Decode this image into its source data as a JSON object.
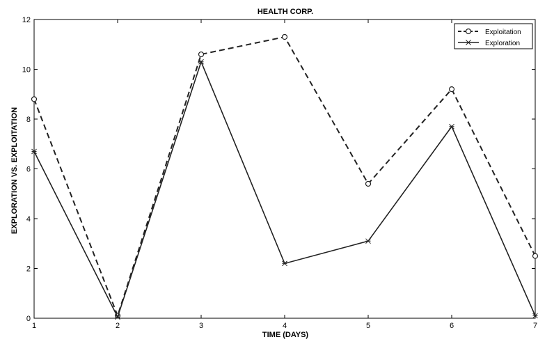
{
  "chart_data": {
    "type": "line",
    "title": "HEALTH CORP.",
    "xlabel": "TIME (DAYS)",
    "ylabel": "EXPLORATION VS. EXPLOITATION",
    "xlim": [
      1,
      7
    ],
    "ylim": [
      0,
      12
    ],
    "x_ticks": [
      1,
      2,
      3,
      4,
      5,
      6,
      7
    ],
    "y_ticks": [
      0,
      2,
      4,
      6,
      8,
      10,
      12
    ],
    "grid": false,
    "legend_position": "top-right",
    "x": [
      1,
      2,
      3,
      4,
      5,
      6,
      7
    ],
    "series": [
      {
        "name": "Exploitation",
        "values": [
          8.8,
          0.1,
          10.6,
          11.3,
          5.4,
          9.2,
          2.5
        ],
        "line_style": "dashed",
        "marker": "circle",
        "color": "#222222"
      },
      {
        "name": "Exploration",
        "values": [
          6.7,
          0.05,
          10.3,
          2.2,
          3.1,
          7.7,
          0.1
        ],
        "line_style": "solid",
        "marker": "star",
        "color": "#222222"
      }
    ]
  }
}
